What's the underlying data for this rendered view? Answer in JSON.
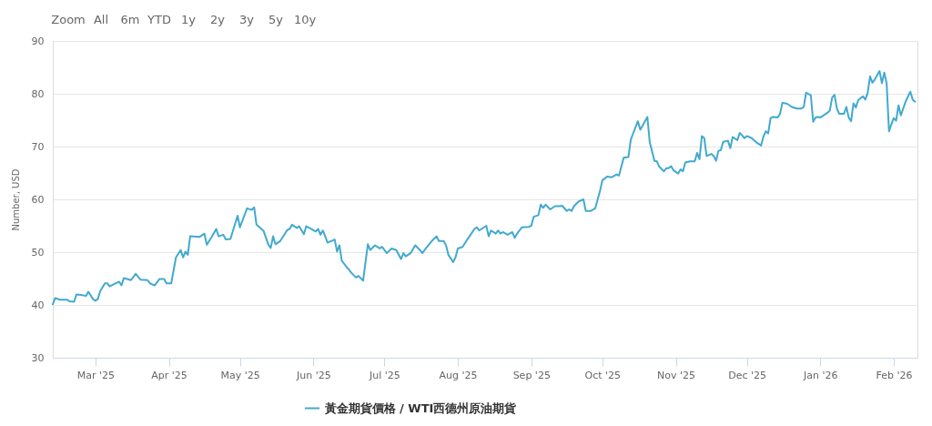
{
  "chart_data": {
    "type": "line",
    "ylabel": "Number, USD",
    "xlim": [
      "2025-02-11",
      "2026-02-11"
    ],
    "xticks": [
      {
        "value": "2025-03-01",
        "label": "Mar '25"
      },
      {
        "value": "2025-04-01",
        "label": "Apr '25"
      },
      {
        "value": "2025-05-01",
        "label": "May '25"
      },
      {
        "value": "2025-06-01",
        "label": "Jun '25"
      },
      {
        "value": "2025-07-01",
        "label": "Jul '25"
      },
      {
        "value": "2025-08-01",
        "label": "Aug '25"
      },
      {
        "value": "2025-09-01",
        "label": "Sep '25"
      },
      {
        "value": "2025-10-01",
        "label": "Oct '25"
      },
      {
        "value": "2025-11-01",
        "label": "Nov '25"
      },
      {
        "value": "2025-12-01",
        "label": "Dec '25"
      },
      {
        "value": "2026-01-01",
        "label": "Jan '26"
      },
      {
        "value": "2026-02-01",
        "label": "Feb '26"
      }
    ],
    "ylim": [
      30,
      90
    ],
    "yticks": [
      30,
      40,
      50,
      60,
      70,
      80,
      90
    ],
    "grid": "y",
    "legend": "bottom",
    "annotations": [
      "Zoom",
      "All",
      "6m",
      "YTD",
      "1y",
      "2y",
      "3y",
      "5y",
      "10y"
    ],
    "x": [
      "2025-02-11",
      "2025-02-12",
      "2025-02-14",
      "2025-02-17",
      "2025-02-18",
      "2025-02-20",
      "2025-02-21",
      "2025-02-23",
      "2025-02-25",
      "2025-02-26",
      "2025-02-28",
      "2025-03-01",
      "2025-03-02",
      "2025-03-03",
      "2025-03-05",
      "2025-03-06",
      "2025-03-07",
      "2025-03-09",
      "2025-03-11",
      "2025-03-12",
      "2025-03-13",
      "2025-03-16",
      "2025-03-18",
      "2025-03-20",
      "2025-03-23",
      "2025-03-24",
      "2025-03-26",
      "2025-03-28",
      "2025-03-30",
      "2025-03-31",
      "2025-04-02",
      "2025-04-04",
      "2025-04-06",
      "2025-04-07",
      "2025-04-08",
      "2025-04-09",
      "2025-04-10",
      "2025-04-14",
      "2025-04-16",
      "2025-04-17",
      "2025-04-19",
      "2025-04-21",
      "2025-04-22",
      "2025-04-24",
      "2025-04-25",
      "2025-04-27",
      "2025-04-30",
      "2025-05-01",
      "2025-05-04",
      "2025-05-06",
      "2025-05-07",
      "2025-05-08",
      "2025-05-11",
      "2025-05-13",
      "2025-05-14",
      "2025-05-15",
      "2025-05-16",
      "2025-05-18",
      "2025-05-21",
      "2025-05-22",
      "2025-05-23",
      "2025-05-25",
      "2025-05-26",
      "2025-05-28",
      "2025-05-29",
      "2025-05-31",
      "2025-06-02",
      "2025-06-03",
      "2025-06-04",
      "2025-06-05",
      "2025-06-06",
      "2025-06-07",
      "2025-06-10",
      "2025-06-11",
      "2025-06-12",
      "2025-06-13",
      "2025-06-15",
      "2025-06-16",
      "2025-06-17",
      "2025-06-19",
      "2025-06-20",
      "2025-06-22",
      "2025-06-24",
      "2025-06-25",
      "2025-06-27",
      "2025-06-29",
      "2025-06-30",
      "2025-07-02",
      "2025-07-04",
      "2025-07-06",
      "2025-07-08",
      "2025-07-09",
      "2025-07-10",
      "2025-07-12",
      "2025-07-14",
      "2025-07-16",
      "2025-07-17",
      "2025-07-19",
      "2025-07-21",
      "2025-07-23",
      "2025-07-24",
      "2025-07-26",
      "2025-07-27",
      "2025-07-28",
      "2025-07-30",
      "2025-07-31",
      "2025-08-01",
      "2025-08-03",
      "2025-08-05",
      "2025-08-08",
      "2025-08-09",
      "2025-08-10",
      "2025-08-11",
      "2025-08-13",
      "2025-08-14",
      "2025-08-15",
      "2025-08-17",
      "2025-08-18",
      "2025-08-19",
      "2025-08-20",
      "2025-08-22",
      "2025-08-24",
      "2025-08-25",
      "2025-08-26",
      "2025-08-28",
      "2025-08-31",
      "2025-09-01",
      "2025-09-02",
      "2025-09-04",
      "2025-09-05",
      "2025-09-06",
      "2025-09-07",
      "2025-09-09",
      "2025-09-11",
      "2025-09-13",
      "2025-09-14",
      "2025-09-16",
      "2025-09-17",
      "2025-09-18",
      "2025-09-19",
      "2025-09-21",
      "2025-09-23",
      "2025-09-24",
      "2025-09-26",
      "2025-09-28",
      "2025-09-30",
      "2025-10-01",
      "2025-10-03",
      "2025-10-05",
      "2025-10-07",
      "2025-10-08",
      "2025-10-10",
      "2025-10-12",
      "2025-10-13",
      "2025-10-14",
      "2025-10-16",
      "2025-10-17",
      "2025-10-20",
      "2025-10-21",
      "2025-10-23",
      "2025-10-24",
      "2025-10-25",
      "2025-10-27",
      "2025-10-28",
      "2025-10-29",
      "2025-10-30",
      "2025-10-31",
      "2025-11-02",
      "2025-11-03",
      "2025-11-04",
      "2025-11-05",
      "2025-11-07",
      "2025-11-09",
      "2025-11-10",
      "2025-11-11",
      "2025-11-12",
      "2025-11-13",
      "2025-11-14",
      "2025-11-16",
      "2025-11-17",
      "2025-11-18",
      "2025-11-19",
      "2025-11-20",
      "2025-11-21",
      "2025-11-23",
      "2025-11-24",
      "2025-11-25",
      "2025-11-27",
      "2025-11-28",
      "2025-11-30",
      "2025-12-01",
      "2025-12-03",
      "2025-12-05",
      "2025-12-07",
      "2025-12-08",
      "2025-12-09",
      "2025-12-10",
      "2025-12-11",
      "2025-12-12",
      "2025-12-14",
      "2025-12-15",
      "2025-12-16",
      "2025-12-18",
      "2025-12-20",
      "2025-12-22",
      "2025-12-24",
      "2025-12-25",
      "2025-12-26",
      "2025-12-28",
      "2025-12-29",
      "2025-12-30",
      "2025-12-31",
      "2026-01-01",
      "2026-01-02",
      "2026-01-04",
      "2026-01-05",
      "2026-01-06",
      "2026-01-07",
      "2026-01-08",
      "2026-01-09",
      "2026-01-11",
      "2026-01-12",
      "2026-01-13",
      "2026-01-14",
      "2026-01-15",
      "2026-01-16",
      "2026-01-17",
      "2026-01-19",
      "2026-01-20",
      "2026-01-21",
      "2026-01-22",
      "2026-01-23",
      "2026-01-24",
      "2026-01-26",
      "2026-01-27",
      "2026-01-28",
      "2026-01-29",
      "2026-01-30",
      "2026-01-31",
      "2026-02-01",
      "2026-02-02",
      "2026-02-03",
      "2026-02-04",
      "2026-02-05",
      "2026-02-06",
      "2026-02-08",
      "2026-02-09",
      "2026-02-10"
    ],
    "series": [
      {
        "name": "黃金期貨價格 / WTI西德州原油期貨",
        "color": "#42a9cf",
        "values": [
          40.1,
          41.3,
          41.0,
          41.0,
          40.7,
          40.6,
          42.0,
          41.9,
          41.7,
          42.5,
          41.1,
          40.8,
          41.1,
          42.6,
          44.1,
          44.1,
          43.5,
          44.0,
          44.4,
          43.7,
          45.1,
          44.7,
          45.9,
          44.8,
          44.7,
          44.1,
          43.7,
          44.9,
          44.9,
          44.1,
          44.1,
          49.0,
          50.4,
          49.0,
          50.1,
          49.5,
          53.0,
          52.9,
          53.5,
          51.4,
          52.8,
          54.4,
          53.0,
          53.3,
          52.4,
          52.5,
          56.9,
          54.7,
          58.3,
          58.0,
          58.5,
          55.2,
          54.0,
          51.4,
          50.8,
          53.0,
          51.5,
          52.1,
          54.2,
          54.4,
          55.2,
          54.6,
          54.9,
          53.4,
          54.9,
          54.4,
          53.9,
          54.4,
          53.3,
          54.1,
          53.0,
          51.8,
          52.4,
          50.1,
          51.3,
          48.4,
          47.2,
          46.7,
          46.1,
          45.2,
          45.5,
          44.6,
          51.5,
          50.4,
          51.3,
          50.7,
          51.0,
          49.8,
          50.7,
          50.4,
          48.7,
          49.8,
          49.2,
          49.8,
          51.3,
          50.4,
          49.8,
          51.0,
          52.1,
          53.0,
          52.1,
          52.1,
          51.3,
          49.5,
          48.1,
          49.0,
          50.7,
          51.0,
          52.4,
          54.4,
          54.7,
          54.1,
          54.4,
          55.0,
          53.0,
          54.1,
          53.5,
          54.1,
          53.5,
          53.8,
          53.3,
          53.8,
          52.7,
          53.5,
          54.7,
          54.8,
          55.0,
          56.7,
          57.0,
          59.0,
          58.4,
          59.0,
          58.1,
          58.7,
          58.7,
          58.8,
          57.8,
          58.1,
          57.8,
          58.7,
          59.6,
          60.0,
          57.8,
          57.8,
          58.3,
          61.6,
          63.6,
          64.3,
          64.2,
          64.7,
          64.5,
          67.9,
          68.0,
          71.3,
          72.5,
          74.8,
          73.2,
          75.6,
          70.8,
          67.3,
          67.2,
          66.2,
          65.3,
          65.9,
          65.9,
          66.3,
          65.5,
          64.9,
          65.7,
          65.3,
          67.0,
          67.2,
          67.2,
          68.8,
          67.6,
          72.0,
          71.6,
          68.2,
          68.6,
          68.2,
          67.3,
          69.2,
          69.3,
          70.9,
          71.1,
          69.7,
          71.8,
          71.2,
          72.6,
          71.6,
          72.0,
          71.6,
          70.8,
          70.2,
          71.9,
          72.9,
          72.5,
          75.4,
          75.6,
          75.5,
          76.2,
          78.3,
          78.1,
          77.5,
          77.2,
          77.2,
          77.5,
          80.2,
          79.7,
          74.7,
          75.5,
          75.6,
          75.5,
          75.8,
          76.4,
          76.8,
          79.3,
          79.8,
          77.2,
          76.2,
          76.2,
          77.5,
          75.5,
          74.8,
          78.2,
          77.4,
          78.8,
          79.5,
          78.9,
          80.2,
          83.3,
          82.1,
          82.7,
          84.3,
          82.0,
          84.0,
          82.0,
          72.9,
          74.2,
          75.4,
          74.9,
          77.8,
          75.9,
          77.2,
          78.5,
          80.4,
          78.9,
          78.5
        ]
      }
    ]
  }
}
